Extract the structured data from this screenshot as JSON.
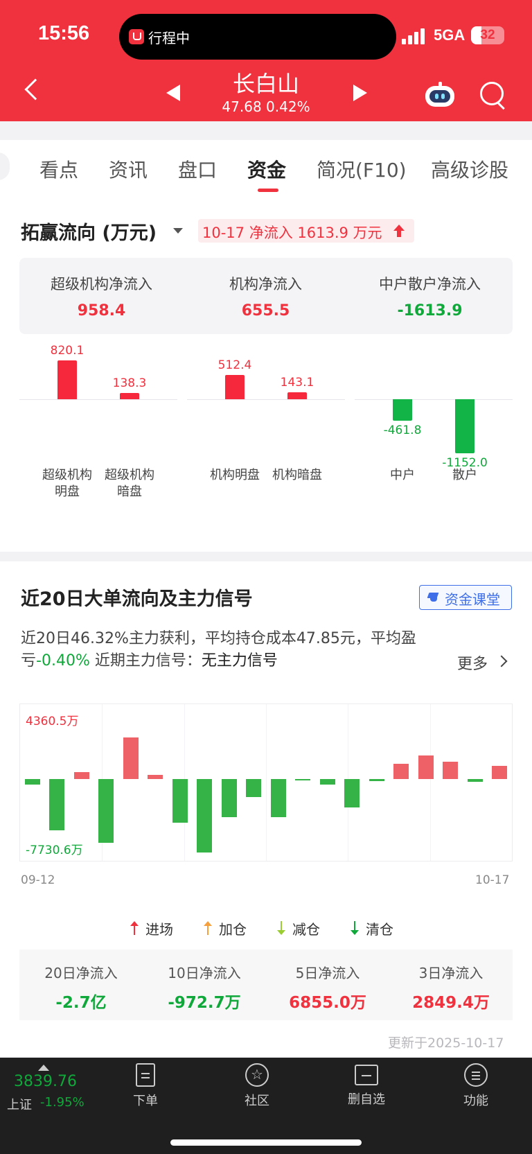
{
  "status_bar": {
    "time": "15:56",
    "island_text": "行程中",
    "network": "5GA",
    "battery": "32",
    "battery_level": 0.32
  },
  "header": {
    "stock_name": "长白山",
    "quote": "47.68 0.42%",
    "colors": {
      "brand_red": "#f0313e"
    }
  },
  "tabs": [
    "看点",
    "资讯",
    "盘口",
    "资金",
    "简况(F10)",
    "高级诊股"
  ],
  "active_tab": "资金",
  "flow": {
    "title": "拓赢流向 (万元)",
    "badge": "10-17 净流入 1613.9 万元",
    "summary": [
      {
        "label": "超级机构净流入",
        "value": "958.4",
        "tone": "red"
      },
      {
        "label": "机构净流入",
        "value": "655.5",
        "tone": "red"
      },
      {
        "label": "中户散户净流入",
        "value": "-1613.9",
        "tone": "green"
      }
    ],
    "groups": [
      {
        "bars": [
          {
            "label": [
              "超级机构",
              "明盘"
            ],
            "value": 820.1
          },
          {
            "label": [
              "超级机构",
              "暗盘"
            ],
            "value": 138.3
          }
        ]
      },
      {
        "bars": [
          {
            "label": [
              "机构明盘"
            ],
            "value": 512.4
          },
          {
            "label": [
              "机构暗盘"
            ],
            "value": 143.1
          }
        ]
      },
      {
        "bars": [
          {
            "label": [
              "中户"
            ],
            "value": -461.8
          },
          {
            "label": [
              "散户"
            ],
            "value": -1152.0
          }
        ]
      }
    ]
  },
  "big_order": {
    "title": "近20日大单流向及主力信号",
    "class_button": "资金课堂",
    "desc_prefix": "近20日46.32%主力获利，平均持仓成本47.85元，平均盈亏",
    "desc_pct": "-0.40%",
    "desc_signal_label": "近期主力信号：",
    "desc_signal_value": "无主力信号",
    "more": "更多",
    "max_label": "4360.5万",
    "min_label": "-7730.6万",
    "x_start": "09-12",
    "x_end": "10-17",
    "legend": [
      {
        "label": "进场",
        "dir": "up",
        "color": "#f0313e"
      },
      {
        "label": "加仓",
        "dir": "up",
        "color": "#f5a03c"
      },
      {
        "label": "减仓",
        "dir": "down",
        "color": "#9acd32"
      },
      {
        "label": "清仓",
        "dir": "down",
        "color": "#10a83a"
      }
    ],
    "net": [
      {
        "label": "20日净流入",
        "value": "-2.7亿",
        "tone": "green"
      },
      {
        "label": "10日净流入",
        "value": "-972.7万",
        "tone": "green"
      },
      {
        "label": "5日净流入",
        "value": "6855.0万",
        "tone": "red"
      },
      {
        "label": "3日净流入",
        "value": "2849.4万",
        "tone": "red"
      }
    ],
    "updated": "更新于2025-10-17"
  },
  "chart_data": {
    "type": "bar",
    "title": "近20日大单流向及主力信号",
    "unit": "万",
    "x": [
      "09-12",
      "",
      "",
      "",
      "",
      "",
      "",
      "",
      "",
      "",
      "",
      "",
      "",
      "",
      "",
      "",
      "",
      "",
      "",
      "10-17"
    ],
    "values": [
      -600,
      -5400,
      700,
      -6700,
      4360.5,
      400,
      -4600,
      -7730.6,
      -4000,
      -1900,
      -4000,
      -100,
      -600,
      -3000,
      -200,
      1600,
      2500,
      1800,
      -300,
      1400
    ],
    "ylim": [
      -7730.6,
      4360.5
    ],
    "colors": {
      "positive": "#ee6267",
      "negative": "#36b347"
    }
  },
  "bottom_bar": {
    "index_value": "3839.76",
    "index_name": "上证",
    "index_change": "-1.95%",
    "nav": [
      "下单",
      "社区",
      "删自选",
      "功能"
    ]
  }
}
